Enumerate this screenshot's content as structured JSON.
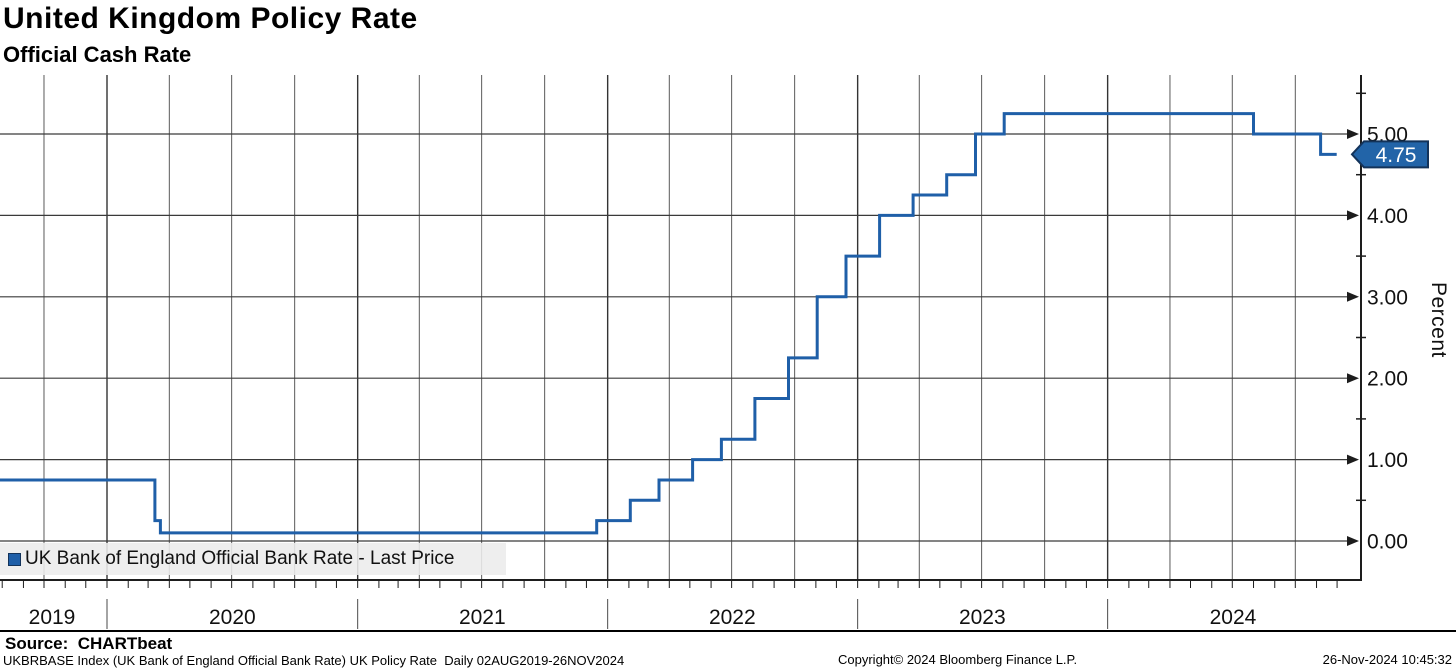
{
  "title": "United Kingdom Policy Rate",
  "subtitle": "Official Cash Rate",
  "legend": {
    "label": "UK Bank of England Official Bank Rate - Last Price"
  },
  "badge": {
    "last_price": "4.75"
  },
  "axis": {
    "percent_label": "Percent",
    "y_tick_labels": [
      "5.00",
      "4.00",
      "3.00",
      "2.00",
      "1.00",
      "0.00"
    ],
    "x_year_labels": [
      "2019",
      "2020",
      "2021",
      "2022",
      "2023",
      "2024"
    ]
  },
  "footer": {
    "source": "Source:  CHARTbeat",
    "description": "UKBRBASE Index (UK Bank of England Official Bank Rate) UK Policy Rate  Daily 02AUG2019-26NOV2024",
    "copyright": "Copyright© 2024 Bloomberg Finance L.P.",
    "timestamp": "26-Nov-2024 10:45:32"
  },
  "colors": {
    "line": "#1f5fa8",
    "badge_fill": "#2264a8",
    "badge_border": "#13335a",
    "badge_text": "#ffffff",
    "grid_h": "#3a3a3a",
    "grid_v_quarter": "#5a5a5a",
    "grid_v_year": "#333333",
    "axis": "#1d1d1d",
    "tick_label": "#111111",
    "legend_bg": "#ececec"
  },
  "chart_data": {
    "type": "line",
    "step": true,
    "title": "United Kingdom Policy Rate",
    "subtitle": "Official Cash Rate",
    "series_name": "UK Bank of England Official Bank Rate - Last Price",
    "ylabel": "Percent",
    "yticks": [
      0.0,
      1.0,
      2.0,
      3.0,
      4.0,
      5.0
    ],
    "ylim": [
      -0.45,
      5.7
    ],
    "x_range": [
      "2019-08-02",
      "2024-11-26"
    ],
    "grid": true,
    "legend_position": "bottom-left",
    "last_value": 4.75,
    "points": [
      {
        "date": "2019-08-02",
        "rate": 0.75
      },
      {
        "date": "2020-03-11",
        "rate": 0.25
      },
      {
        "date": "2020-03-19",
        "rate": 0.1
      },
      {
        "date": "2021-12-16",
        "rate": 0.25
      },
      {
        "date": "2022-02-03",
        "rate": 0.5
      },
      {
        "date": "2022-03-17",
        "rate": 0.75
      },
      {
        "date": "2022-05-05",
        "rate": 1.0
      },
      {
        "date": "2022-06-16",
        "rate": 1.25
      },
      {
        "date": "2022-08-04",
        "rate": 1.75
      },
      {
        "date": "2022-09-22",
        "rate": 2.25
      },
      {
        "date": "2022-11-03",
        "rate": 3.0
      },
      {
        "date": "2022-12-15",
        "rate": 3.5
      },
      {
        "date": "2023-02-02",
        "rate": 4.0
      },
      {
        "date": "2023-03-23",
        "rate": 4.25
      },
      {
        "date": "2023-05-11",
        "rate": 4.5
      },
      {
        "date": "2023-06-22",
        "rate": 5.0
      },
      {
        "date": "2023-08-03",
        "rate": 5.25
      },
      {
        "date": "2024-08-01",
        "rate": 5.0
      },
      {
        "date": "2024-11-07",
        "rate": 4.75
      }
    ]
  }
}
